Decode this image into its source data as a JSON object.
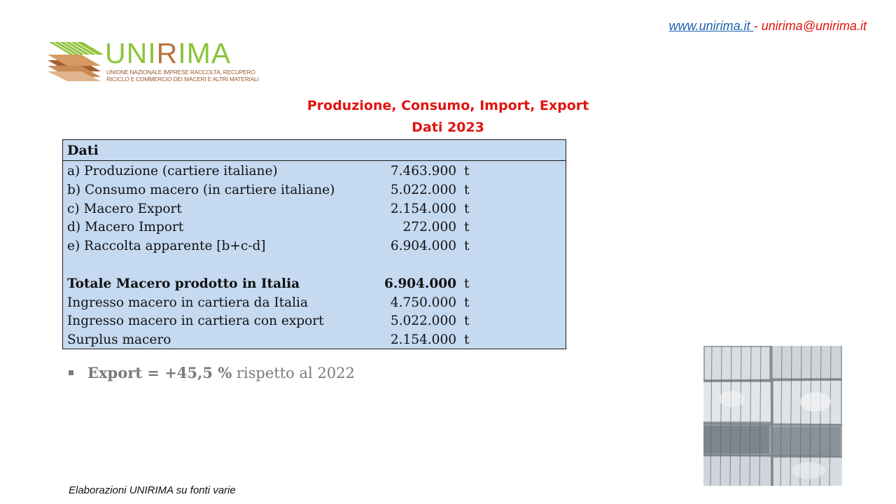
{
  "contact": {
    "website": "www.unirima.it ",
    "separator": "- ",
    "email": "unirima@unirima.it"
  },
  "logo": {
    "word_start": "UNI",
    "word_r": "R",
    "word_end": "IMA",
    "subtitle_line1": "Unione Nazionale Imprese Raccolta, Recupero",
    "subtitle_line2": "Riciclo e Commercio dei Maceri e Altri Materiali",
    "icon": "layered-sheets-icon"
  },
  "header": {
    "title": "Produzione, Consumo, Import, Export",
    "subtitle": "Dati 2023"
  },
  "table": {
    "heading": "Dati",
    "rows": [
      {
        "label": "a)  Produzione (cartiere italiane)",
        "value": "7.463.900",
        "unit": "t"
      },
      {
        "label": "b) Consumo macero (in cartiere italiane)",
        "value": "5.022.000",
        "unit": "t"
      },
      {
        "label": "c)  Macero Export",
        "value": "2.154.000",
        "unit": "t"
      },
      {
        "label": "d)  Macero Import",
        "value": "272.000",
        "unit": "t"
      },
      {
        "label": "e)  Raccolta apparente [b+c-d]",
        "value": "6.904.000",
        "unit": "t"
      },
      {
        "label": "Totale Macero prodotto in Italia",
        "value": "6.904.000",
        "unit": "t"
      },
      {
        "label": "Ingresso macero in cartiera da Italia",
        "value": "4.750.000",
        "unit": "t"
      },
      {
        "label": "Ingresso macero in cartiera con export",
        "value": "5.022.000",
        "unit": "t"
      },
      {
        "label": "Surplus macero",
        "value": "2.154.000",
        "unit": "t"
      }
    ]
  },
  "bullet": {
    "bold_text": "Export = +45,5 %",
    "text": " rispetto al 2022"
  },
  "footer": "Elaborazioni UNIRIMA su fonti varie",
  "colors": {
    "title_red": "#e0140f",
    "table_fill": "#c5d9f1",
    "logo_green": "#8dc33a",
    "logo_brown": "#b7733e"
  }
}
